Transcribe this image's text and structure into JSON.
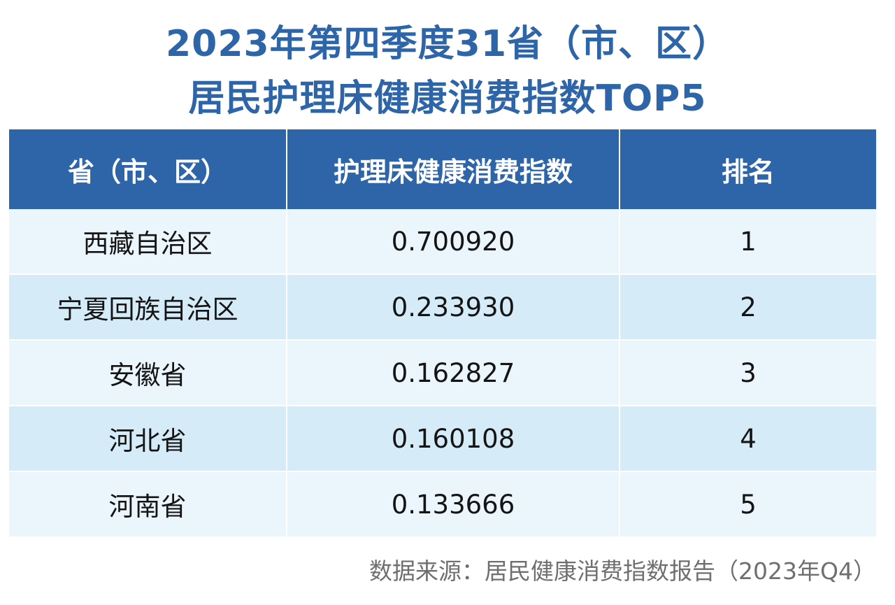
{
  "colors": {
    "title": "#2e64a8",
    "header_bg": "#2e64a8",
    "header_text": "#ffffff",
    "row_light": "#eaf5fc",
    "row_dark": "#d5ebf8",
    "source_text": "#6f6f6f"
  },
  "title": {
    "line1": "2023年第四季度31省（市、区）",
    "line2": "居民护理床健康消费指数TOP5"
  },
  "chart_data": {
    "type": "table",
    "columns": [
      "省（市、区）",
      "护理床健康消费指数",
      "排名"
    ],
    "rows": [
      [
        "西藏自治区",
        "0.700920",
        "1"
      ],
      [
        "宁夏回族自治区",
        "0.233930",
        "2"
      ],
      [
        "安徽省",
        "0.162827",
        "3"
      ],
      [
        "河北省",
        "0.160108",
        "4"
      ],
      [
        "河南省",
        "0.133666",
        "5"
      ]
    ]
  },
  "source_note": "数据来源：居民健康消费指数报告（2023年Q4）"
}
